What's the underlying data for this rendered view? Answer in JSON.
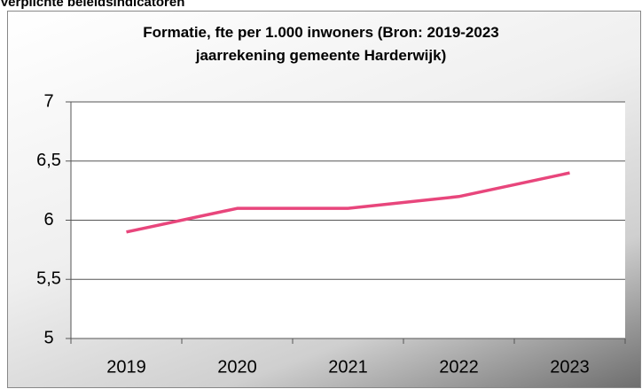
{
  "header": "Verplichte beleidsindicatoren",
  "chart_data": {
    "type": "line",
    "title": "Formatie, fte per 1.000 inwoners (Bron: 2019-2023 jaarrekening gemeente Harderwijk)",
    "categories": [
      "2019",
      "2020",
      "2021",
      "2022",
      "2023"
    ],
    "series": [
      {
        "name": "Formatie",
        "color": "#e8467c",
        "values": [
          5.9,
          6.1,
          6.1,
          6.2,
          6.4
        ]
      }
    ],
    "ylim": [
      5,
      7
    ],
    "yticks": [
      5,
      {
        "value": 5.5,
        "label": "5,5"
      },
      6,
      {
        "value": 6.5,
        "label": "6,5"
      },
      7
    ],
    "grid": true
  }
}
